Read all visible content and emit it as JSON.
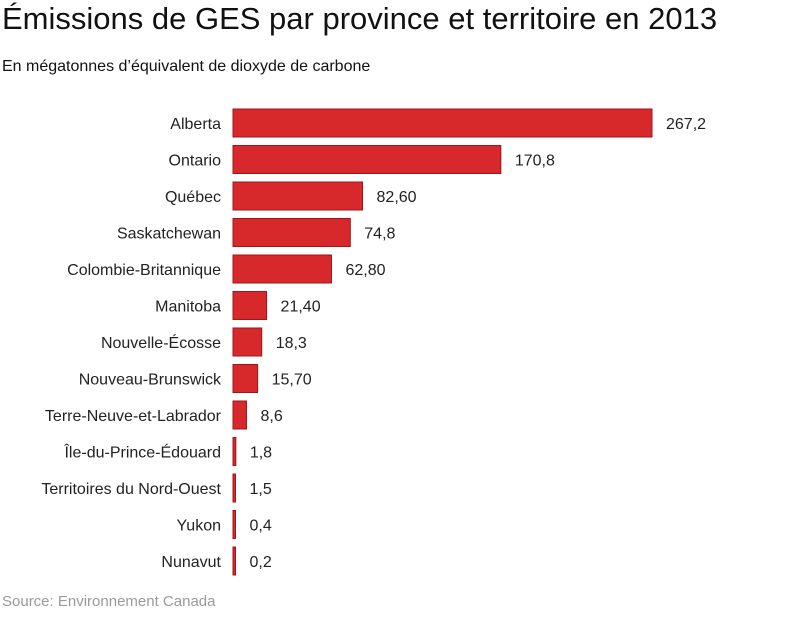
{
  "chart_data": {
    "type": "bar",
    "orientation": "horizontal",
    "title": "Émissions de GES par province et territoire en 2013",
    "subtitle": "En mégatonnes d’équivalent de dioxyde de carbone",
    "source": "Source: Environnement Canada",
    "categories": [
      "Alberta",
      "Ontario",
      "Québec",
      "Saskatchewan",
      "Colombie-Britannique",
      "Manitoba",
      "Nouvelle-Écosse",
      "Nouveau-Brunswick",
      "Terre-Neuve-et-Labrador",
      "Île-du-Prince-Édouard",
      "Territoires du Nord-Ouest",
      "Yukon",
      "Nunavut"
    ],
    "values": [
      267.2,
      170.8,
      82.6,
      74.8,
      62.8,
      21.4,
      18.3,
      15.7,
      8.6,
      1.8,
      1.5,
      0.4,
      0.2
    ],
    "value_labels": [
      "267,2",
      "170,8",
      "82,60",
      "74,8",
      "62,80",
      "21,40",
      "18,3",
      "15,70",
      "8,6",
      "1,8",
      "1,5",
      "0,4",
      "0,2"
    ],
    "xlim": [
      0,
      267.2
    ],
    "grid": false,
    "legend": "none",
    "bar_color": "#d7282c",
    "bar_stroke": "#a0141c"
  }
}
